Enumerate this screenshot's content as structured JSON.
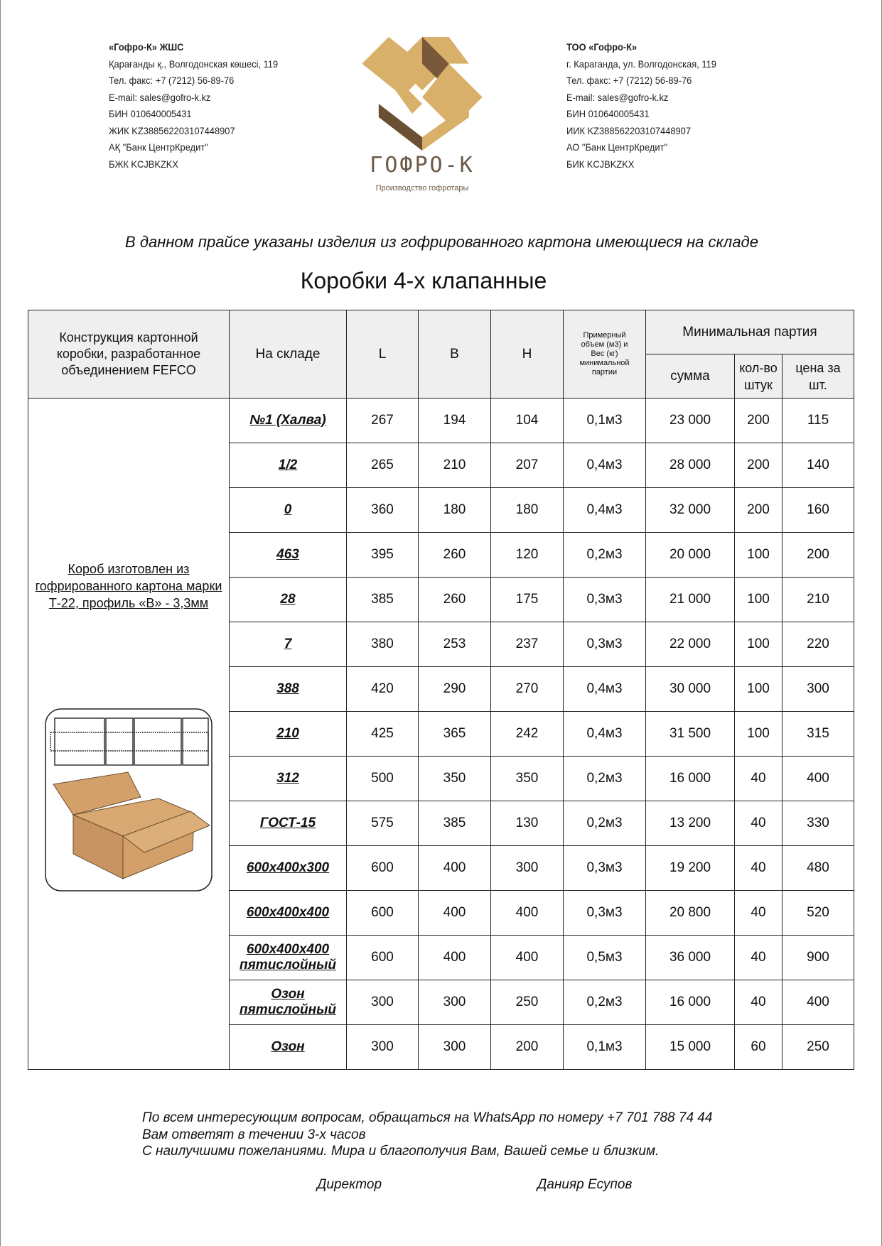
{
  "header": {
    "left": [
      "«Гофро-К» ЖШС",
      "Қарағанды қ., Волгодонская көшесі, 119",
      "Тел. факс: +7 (7212) 56-89-76",
      "E-mail: sales@gofro-k.kz",
      "БИН 010640005431",
      "ЖИК KZ388562203107448907",
      "АҚ \"Банк ЦентрКредит\"",
      "БЖК KCJBKZKX"
    ],
    "right": [
      "ТОО «Гофро-К»",
      "г. Караганда, ул. Волгодонская, 119",
      "Тел. факс: +7 (7212) 56-89-76",
      "E-mail: sales@gofro-k.kz",
      "БИН 010640005431",
      "ИИК KZ388562203107448907",
      "АО \"Банк ЦентрКредит\"",
      "БИК KCJBKZKX"
    ],
    "logo": {
      "text": "ГОФРО-К",
      "tagline": "Производство гофротары",
      "colors": [
        "#d9b06a",
        "#6b4f33"
      ]
    }
  },
  "intro": "В данном прайсе указаны изделия из гофрированного картона имеющиеся на складе",
  "title": "Коробки 4-х клапанные",
  "table": {
    "headers": {
      "construction": "Конструкция картонной коробки, разработанное объединением FEFCO",
      "stock": "На складе",
      "l": "L",
      "b": "B",
      "h": "H",
      "volume": "Примерный объем (м3) и Вес (кг) минимальной партии",
      "min_batch": "Минимальная партия",
      "sum": "сумма",
      "qty": "кол-во штук",
      "price": "цена за шт."
    },
    "construction_note": "Короб изготовлен из гофрированного картона марки Т-22, профиль «В» - 3,3мм",
    "rows": [
      [
        "№1 (Халва)",
        "267",
        "194",
        "104",
        "0,1м3",
        "23 000",
        "200",
        "115"
      ],
      [
        "1/2",
        "265",
        "210",
        "207",
        "0,4м3",
        "28 000",
        "200",
        "140"
      ],
      [
        "0",
        "360",
        "180",
        "180",
        "0,4м3",
        "32 000",
        "200",
        "160"
      ],
      [
        "463",
        "395",
        "260",
        "120",
        "0,2м3",
        "20 000",
        "100",
        "200"
      ],
      [
        "28",
        "385",
        "260",
        "175",
        "0,3м3",
        "21 000",
        "100",
        "210"
      ],
      [
        "7",
        "380",
        "253",
        "237",
        "0,3м3",
        "22 000",
        "100",
        "220"
      ],
      [
        "388",
        "420",
        "290",
        "270",
        "0,4м3",
        "30 000",
        "100",
        "300"
      ],
      [
        "210",
        "425",
        "365",
        "242",
        "0,4м3",
        "31 500",
        "100",
        "315"
      ],
      [
        "312",
        "500",
        "350",
        "350",
        "0,2м3",
        "16 000",
        "40",
        "400"
      ],
      [
        "ГОСТ-15",
        "575",
        "385",
        "130",
        "0,2м3",
        "13 200",
        "40",
        "330"
      ],
      [
        "600x400x300",
        "600",
        "400",
        "300",
        "0,3м3",
        "19 200",
        "40",
        "480"
      ],
      [
        "600x400x400",
        "600",
        "400",
        "400",
        "0,3м3",
        "20 800",
        "40",
        "520"
      ],
      [
        "600x400x400 пятислойный",
        "600",
        "400",
        "400",
        "0,5м3",
        "36 000",
        "40",
        "900"
      ],
      [
        "Озон пятислойный",
        "300",
        "300",
        "250",
        "0,2м3",
        "16 000",
        "40",
        "400"
      ],
      [
        "Озон",
        "300",
        "300",
        "200",
        "0,1м3",
        "15 000",
        "60",
        "250"
      ]
    ]
  },
  "footer": {
    "lines": [
      "По всем интересующим вопросам, обращаться на WhatsApp по номеру +7 701 788 74 44",
      "Вам ответят в течении 3-х часов",
      "С наилучшими пожеланиями. Мира и благополучия Вам, Вашей семье и близким."
    ],
    "position": "Директор",
    "name": "Данияр Есупов"
  }
}
